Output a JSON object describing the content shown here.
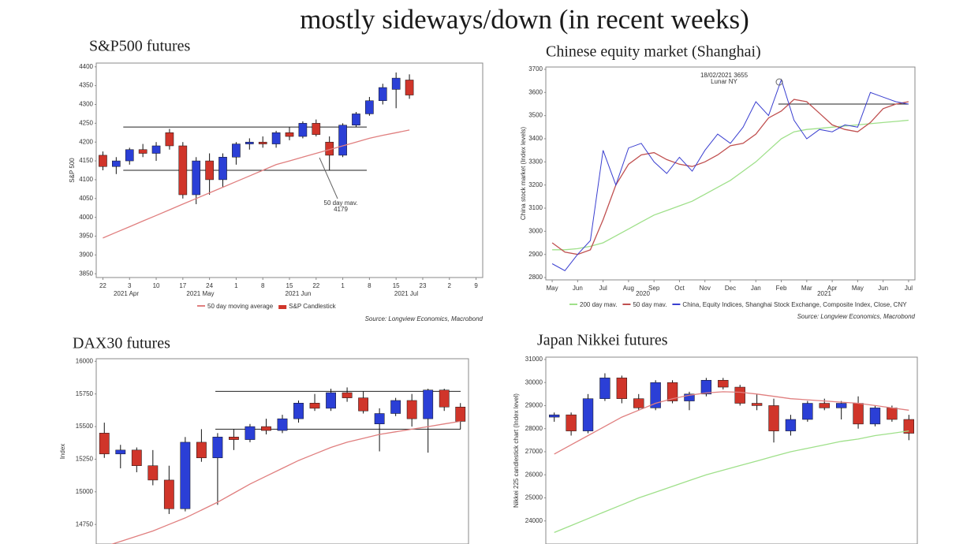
{
  "title": "mostly sideways/down (in recent weeks)",
  "chart_data": [
    {
      "type": "candlestick",
      "title": "S&P500 futures",
      "y_label": "S&P 500",
      "categories": [
        "22",
        null,
        "3",
        null,
        "10",
        null,
        "17",
        null,
        "24",
        null,
        "1",
        null,
        "8",
        null,
        "15",
        null,
        "22",
        null,
        "1",
        null,
        "8",
        null,
        "15",
        null,
        "23",
        null,
        "2",
        null,
        "9"
      ],
      "x_group_labels": [
        "2021 Apr",
        "2021 May",
        "2021 Jun",
        "2021 Jul"
      ],
      "ylim": [
        3840,
        4410
      ],
      "yticks": [
        3850,
        3900,
        3950,
        4000,
        4050,
        4100,
        4150,
        4200,
        4250,
        4300,
        4350,
        4400
      ],
      "series": [
        {
          "name": "S&P Candlestick",
          "up_color": "#2b3fd6",
          "down_color": "#d0352a",
          "open": [
            4165,
            4135,
            4150,
            4180,
            4170,
            4225,
            4190,
            4060,
            4150,
            4100,
            4160,
            4195,
            4200,
            4195,
            4225,
            4215,
            4250,
            4200,
            4165,
            4245,
            4275,
            4310,
            4340,
            4365,
            null,
            null,
            null,
            null,
            null
          ],
          "high": [
            4175,
            4160,
            4185,
            4195,
            4200,
            4235,
            4200,
            4160,
            4170,
            4170,
            4200,
            4210,
            4215,
            4230,
            4240,
            4255,
            4260,
            4215,
            4250,
            4280,
            4320,
            4355,
            4385,
            4380,
            null,
            null,
            null,
            null,
            null
          ],
          "low": [
            4125,
            4115,
            4140,
            4160,
            4150,
            4180,
            4050,
            4035,
            4060,
            4080,
            4140,
            4180,
            4185,
            4185,
            4205,
            4210,
            4215,
            4125,
            4160,
            4240,
            4270,
            4300,
            4290,
            4315,
            null,
            null,
            null,
            null,
            null
          ],
          "close": [
            4135,
            4150,
            4180,
            4170,
            4190,
            4190,
            4060,
            4150,
            4100,
            4160,
            4195,
            4200,
            4195,
            4225,
            4215,
            4250,
            4220,
            4165,
            4245,
            4275,
            4310,
            4345,
            4370,
            4325,
            null,
            null,
            null,
            null,
            null
          ]
        },
        {
          "name": "50 day moving average",
          "color": "#e07f7f",
          "values": [
            3945,
            3960,
            3975,
            3990,
            4005,
            4020,
            4035,
            4050,
            4065,
            4080,
            4095,
            4110,
            4125,
            4140,
            4150,
            4160,
            4170,
            4180,
            4190,
            4200,
            4210,
            4218,
            4225,
            4232,
            null,
            null,
            null,
            null,
            null
          ]
        }
      ],
      "hlines": [
        4240,
        4125
      ],
      "legend": true,
      "annotation": [
        "50 day mav.",
        "4179"
      ],
      "source": "Source: Longview Economics, Macrobond"
    },
    {
      "type": "line",
      "title": "Chinese equity market (Shanghai)",
      "y_label": "China stock market (Index levels)",
      "categories": [
        "May",
        null,
        "Jun",
        null,
        "Jul",
        null,
        "Aug",
        null,
        "Sep",
        null,
        "Oct",
        null,
        "Nov",
        null,
        "Dec",
        null,
        "Jan",
        null,
        "Feb",
        null,
        "Mar",
        null,
        "Apr",
        null,
        "May",
        null,
        "Jun",
        null,
        "Jul"
      ],
      "x_group_labels": [
        "2020",
        "2021"
      ],
      "ylim": [
        2790,
        3710
      ],
      "yticks": [
        2800,
        2900,
        3000,
        3100,
        3200,
        3300,
        3400,
        3500,
        3600,
        3700
      ],
      "series": [
        {
          "name": "200 day mav.",
          "color": "#9fe08a",
          "values": [
            2920,
            2920,
            2925,
            2935,
            2950,
            2980,
            3010,
            3040,
            3070,
            3090,
            3110,
            3130,
            3160,
            3190,
            3220,
            3260,
            3300,
            3350,
            3400,
            3430,
            3440,
            3445,
            3450,
            3455,
            3460,
            3465,
            3470,
            3475,
            3480
          ]
        },
        {
          "name": "50 day mav.",
          "color": "#c05050",
          "values": [
            2950,
            2910,
            2900,
            2920,
            3050,
            3200,
            3290,
            3330,
            3340,
            3310,
            3290,
            3280,
            3300,
            3330,
            3370,
            3380,
            3420,
            3490,
            3520,
            3570,
            3560,
            3510,
            3460,
            3440,
            3430,
            3470,
            3530,
            3550,
            3560
          ]
        },
        {
          "name": "China, Equity Indices, Shanghai Stock Exchange, Composite Index, Close, CNY",
          "color": "#3a3fd0",
          "values": [
            2860,
            2830,
            2900,
            2960,
            3350,
            3200,
            3360,
            3380,
            3300,
            3250,
            3320,
            3260,
            3350,
            3420,
            3380,
            3450,
            3560,
            3500,
            3655,
            3480,
            3400,
            3440,
            3430,
            3460,
            3450,
            3600,
            3580,
            3560,
            3550
          ]
        }
      ],
      "hlines": [
        3550
      ],
      "legend": true,
      "annotation": [
        "18/02/2021 3655",
        "Lunar NY"
      ],
      "source": "Source: Longview Economics, Macrobond"
    },
    {
      "type": "candlestick",
      "title": "DAX30 futures",
      "y_label": "Index",
      "ylim": [
        14600,
        16020
      ],
      "yticks": [
        14750,
        15000,
        15250,
        15500,
        15750,
        16000
      ],
      "series": [
        {
          "up_color": "#2b3fd6",
          "down_color": "#d0352a",
          "open": [
            15450,
            15290,
            15320,
            15200,
            15090,
            14870,
            15380,
            15260,
            15420,
            15400,
            15500,
            15470,
            15560,
            15680,
            15640,
            15760,
            15720,
            15520,
            15600,
            15700,
            15560,
            15780,
            15650
          ],
          "high": [
            15530,
            15360,
            15340,
            15320,
            15200,
            15420,
            15480,
            15450,
            15480,
            15520,
            15560,
            15590,
            15700,
            15750,
            15790,
            15800,
            15770,
            15640,
            15720,
            15750,
            15790,
            15790,
            15680
          ],
          "low": [
            15260,
            15180,
            15150,
            15050,
            14830,
            14850,
            15230,
            14900,
            15320,
            15380,
            15440,
            15450,
            15530,
            15620,
            15620,
            15690,
            15600,
            15310,
            15580,
            15500,
            15300,
            15620,
            15480
          ],
          "close": [
            15290,
            15320,
            15200,
            15090,
            14870,
            15380,
            15260,
            15420,
            15400,
            15500,
            15470,
            15560,
            15680,
            15640,
            15760,
            15720,
            15620,
            15600,
            15700,
            15560,
            15780,
            15650,
            15540
          ]
        },
        {
          "color": "#e07f7f",
          "values": [
            14580,
            14620,
            14660,
            14700,
            14750,
            14800,
            14860,
            14920,
            14990,
            15060,
            15120,
            15180,
            15240,
            15290,
            15340,
            15380,
            15410,
            15440,
            15460,
            15480,
            15500,
            15520,
            15540
          ]
        }
      ],
      "hlines": [
        15770,
        15480
      ]
    },
    {
      "type": "candlestick",
      "title": "Japan Nikkei futures",
      "y_label": "Nikkei 225 candlestick chart (Index level)",
      "ylim": [
        23000,
        31100
      ],
      "yticks": [
        24000,
        25000,
        26000,
        27000,
        28000,
        29000,
        30000,
        31000
      ],
      "series": [
        {
          "up_color": "#2b3fd6",
          "down_color": "#d0352a",
          "open": [
            28500,
            28600,
            27900,
            29300,
            30200,
            29300,
            28900,
            30000,
            29200,
            29500,
            30100,
            29800,
            29100,
            29000,
            27900,
            28400,
            29100,
            28900,
            29100,
            28200,
            28900,
            28400
          ],
          "high": [
            28700,
            28700,
            29500,
            30400,
            30300,
            29500,
            30100,
            30100,
            29600,
            30200,
            30200,
            29900,
            29500,
            29300,
            28600,
            29200,
            29300,
            29200,
            29400,
            29000,
            29000,
            28600
          ],
          "low": [
            28300,
            27700,
            27800,
            29200,
            29100,
            28800,
            28800,
            29100,
            28800,
            29400,
            29700,
            29000,
            28800,
            27400,
            27700,
            28300,
            28800,
            28400,
            28000,
            28100,
            28300,
            27500
          ],
          "close": [
            28600,
            27900,
            29300,
            30200,
            29300,
            28900,
            30000,
            29200,
            29500,
            30100,
            29800,
            29100,
            29000,
            27900,
            28400,
            29100,
            28900,
            29100,
            28200,
            28900,
            28400,
            27800
          ]
        },
        {
          "color": "#e07f7f",
          "values": [
            26900,
            27300,
            27700,
            28100,
            28500,
            28800,
            29100,
            29300,
            29450,
            29550,
            29600,
            29580,
            29500,
            29400,
            29300,
            29250,
            29200,
            29150,
            29100,
            29000,
            28900,
            28800
          ]
        },
        {
          "color": "#9fe08a",
          "values": [
            23500,
            23800,
            24100,
            24400,
            24700,
            25000,
            25250,
            25500,
            25750,
            26000,
            26200,
            26400,
            26600,
            26800,
            27000,
            27150,
            27300,
            27450,
            27550,
            27700,
            27800,
            27900
          ]
        }
      ]
    }
  ]
}
